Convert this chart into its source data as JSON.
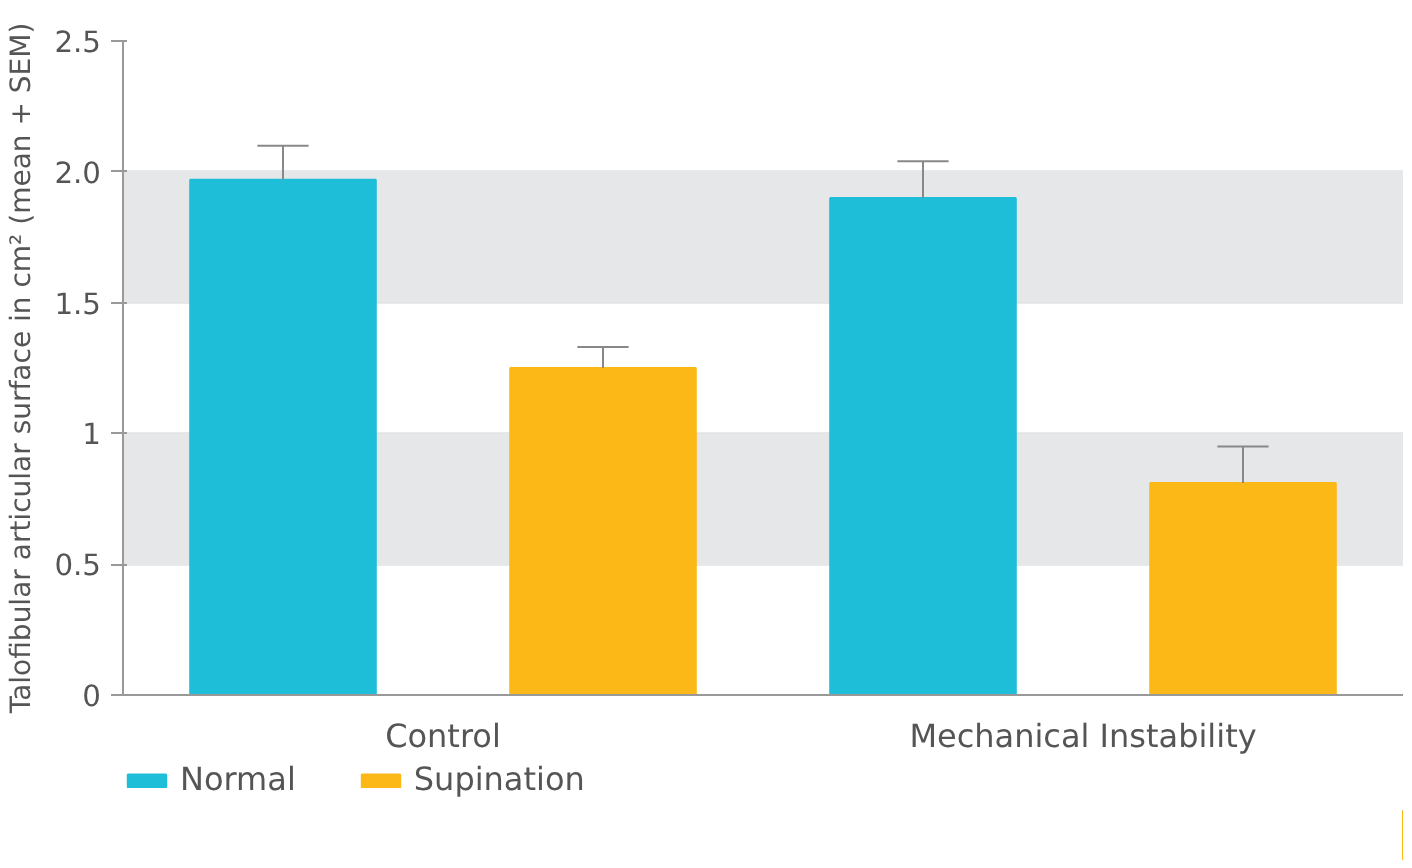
{
  "chart_data": {
    "type": "bar",
    "ylabel": "Talofibular articular surface in cm² (mean + SEM)",
    "categories": [
      "Control",
      "Mechanical Instability"
    ],
    "series": [
      {
        "name": "Normal",
        "color": "#1ebed9",
        "values": [
          1.97,
          1.9
        ],
        "errors": [
          [
            1.97,
            2.1
          ],
          [
            1.9,
            2.04
          ]
        ]
      },
      {
        "name": "Supination",
        "color": "#fbb817",
        "values": [
          1.25,
          0.81
        ],
        "errors": [
          [
            1.25,
            1.33
          ],
          [
            0.81,
            0.95
          ]
        ]
      }
    ],
    "ylim": [
      0,
      2.5
    ],
    "yticks": [
      0,
      0.5,
      1,
      1.5,
      {
        "value": 2,
        "label": "2.0"
      },
      2.5
    ],
    "grid": "y",
    "legend": "bottom left"
  }
}
